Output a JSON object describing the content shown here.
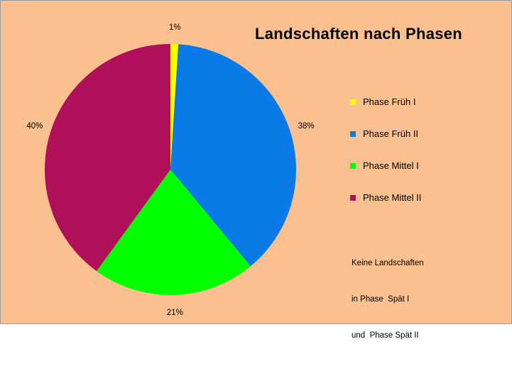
{
  "chart_data": {
    "type": "pie",
    "title": "Landschaften nach Phasen",
    "categories": [
      "Phase Früh I",
      "Phase Früh II",
      "Phase Mittel I",
      "Phase Mittel II"
    ],
    "values": [
      1,
      38,
      21,
      40
    ],
    "data_labels": [
      "1%",
      "38%",
      "21%",
      "40%"
    ],
    "colors": [
      "#ffff00",
      "#0a7be6",
      "#00ff00",
      "#b0105a"
    ],
    "legend_placement": "right",
    "start_angle_deg": 0,
    "direction": "clockwise"
  },
  "note": {
    "lines": [
      "Keine Landschaften",
      "in Phase  Spät I",
      "und  Phase Spät II"
    ]
  }
}
